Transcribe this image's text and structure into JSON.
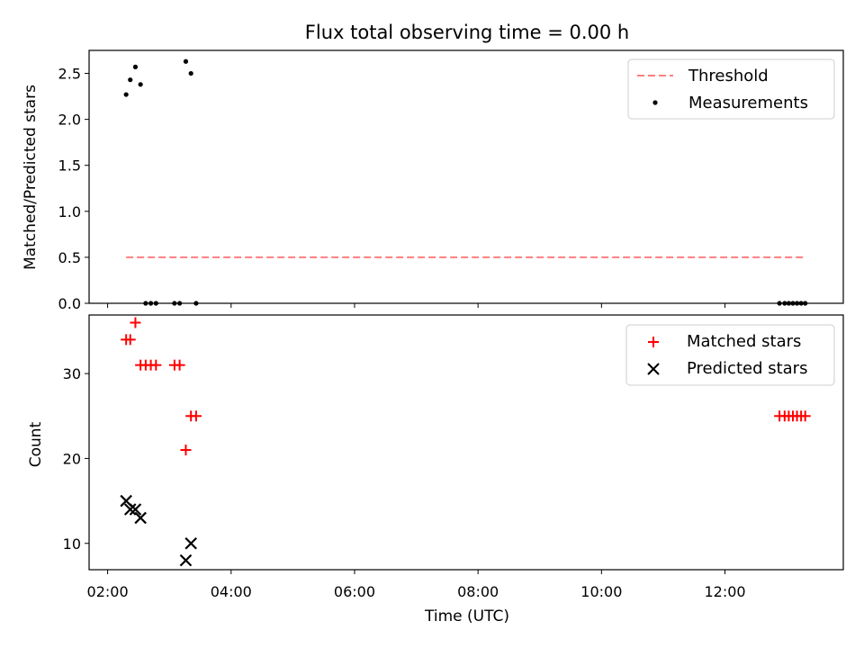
{
  "chart_data": {
    "title": "Flux total observing time = 0.00 h",
    "xlabel": "Time (UTC)",
    "x_ticks": [
      "02:00",
      "04:00",
      "06:00",
      "08:00",
      "10:00",
      "12:00"
    ],
    "xlim": [
      "01:42",
      "13:55"
    ],
    "panels": [
      {
        "type": "scatter",
        "ylabel": "Matched/Predicted stars",
        "ylim": [
          0,
          2.75
        ],
        "y_ticks": [
          "0.0",
          "0.5",
          "1.0",
          "1.5",
          "2.0",
          "2.5"
        ],
        "legend_position": "top-right",
        "series": [
          {
            "name": "Threshold",
            "type": "line",
            "style": "dashed",
            "color": "#ff7f7f",
            "points": [
              {
                "x": "02:18",
                "y": 0.5
              },
              {
                "x": "13:18",
                "y": 0.5
              }
            ]
          },
          {
            "name": "Measurements",
            "type": "scatter",
            "marker": "dot",
            "color": "#000000",
            "points": [
              {
                "x": "02:18",
                "y": 2.27
              },
              {
                "x": "02:22",
                "y": 2.43
              },
              {
                "x": "02:27",
                "y": 2.57
              },
              {
                "x": "02:32",
                "y": 2.38
              },
              {
                "x": "02:37",
                "y": 0.0
              },
              {
                "x": "02:42",
                "y": 0.0
              },
              {
                "x": "02:47",
                "y": 0.0
              },
              {
                "x": "03:05",
                "y": 0.0
              },
              {
                "x": "03:10",
                "y": 0.0
              },
              {
                "x": "03:16",
                "y": 2.63
              },
              {
                "x": "03:21",
                "y": 2.5
              },
              {
                "x": "03:26",
                "y": 0.0
              },
              {
                "x": "12:53",
                "y": 0.0
              },
              {
                "x": "12:58",
                "y": 0.0
              },
              {
                "x": "13:02",
                "y": 0.0
              },
              {
                "x": "13:06",
                "y": 0.0
              },
              {
                "x": "13:10",
                "y": 0.0
              },
              {
                "x": "13:14",
                "y": 0.0
              },
              {
                "x": "13:18",
                "y": 0.0
              }
            ]
          }
        ]
      },
      {
        "type": "scatter",
        "ylabel": "Count",
        "ylim": [
          6.9,
          36.9
        ],
        "y_ticks": [
          "10",
          "20",
          "30"
        ],
        "legend_position": "top-right",
        "series": [
          {
            "name": "Matched stars",
            "marker": "plus",
            "color": "#ff0000",
            "points": [
              {
                "x": "02:18",
                "y": 34
              },
              {
                "x": "02:22",
                "y": 34
              },
              {
                "x": "02:27",
                "y": 36
              },
              {
                "x": "02:32",
                "y": 31
              },
              {
                "x": "02:37",
                "y": 31
              },
              {
                "x": "02:42",
                "y": 31
              },
              {
                "x": "02:47",
                "y": 31
              },
              {
                "x": "03:05",
                "y": 31
              },
              {
                "x": "03:10",
                "y": 31
              },
              {
                "x": "03:16",
                "y": 21
              },
              {
                "x": "03:21",
                "y": 25
              },
              {
                "x": "03:26",
                "y": 25
              },
              {
                "x": "12:53",
                "y": 25
              },
              {
                "x": "12:58",
                "y": 25
              },
              {
                "x": "13:02",
                "y": 25
              },
              {
                "x": "13:06",
                "y": 25
              },
              {
                "x": "13:10",
                "y": 25
              },
              {
                "x": "13:14",
                "y": 25
              },
              {
                "x": "13:18",
                "y": 25
              }
            ]
          },
          {
            "name": "Predicted stars",
            "marker": "x",
            "color": "#000000",
            "points": [
              {
                "x": "02:18",
                "y": 15
              },
              {
                "x": "02:22",
                "y": 14
              },
              {
                "x": "02:27",
                "y": 14
              },
              {
                "x": "02:32",
                "y": 13
              },
              {
                "x": "03:16",
                "y": 8
              },
              {
                "x": "03:21",
                "y": 10
              }
            ]
          }
        ]
      }
    ]
  }
}
